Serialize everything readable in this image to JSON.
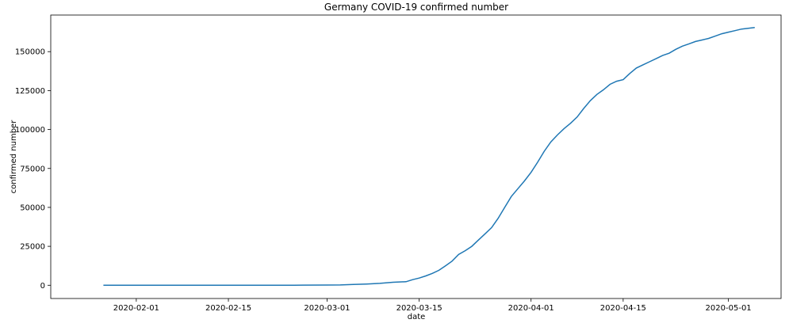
{
  "chart_data": {
    "type": "line",
    "title": "Germany COVID-19 confirmed number",
    "xlabel": "date",
    "ylabel": "confirmed number",
    "x_tick_labels": [
      "2020-02-01",
      "2020-02-15",
      "2020-03-01",
      "2020-03-15",
      "2020-04-01",
      "2020-04-15",
      "2020-05-01"
    ],
    "y_tick_labels": [
      "0",
      "25000",
      "50000",
      "75000",
      "100000",
      "125000",
      "150000"
    ],
    "y_ticks": [
      0,
      25000,
      50000,
      75000,
      100000,
      125000,
      150000
    ],
    "xlim": [
      "2020-01-19",
      "2020-05-09"
    ],
    "ylim": [
      -8500,
      173500
    ],
    "grid": false,
    "series": [
      {
        "color": "#1f77b4",
        "x": [
          "2020-01-27",
          "2020-02-01",
          "2020-02-10",
          "2020-02-20",
          "2020-02-25",
          "2020-03-01",
          "2020-03-03",
          "2020-03-05",
          "2020-03-07",
          "2020-03-09",
          "2020-03-11",
          "2020-03-13",
          "2020-03-14",
          "2020-03-15",
          "2020-03-16",
          "2020-03-17",
          "2020-03-18",
          "2020-03-19",
          "2020-03-20",
          "2020-03-21",
          "2020-03-22",
          "2020-03-23",
          "2020-03-24",
          "2020-03-25",
          "2020-03-26",
          "2020-03-27",
          "2020-03-28",
          "2020-03-29",
          "2020-03-30",
          "2020-03-31",
          "2020-04-01",
          "2020-04-02",
          "2020-04-03",
          "2020-04-04",
          "2020-04-05",
          "2020-04-06",
          "2020-04-07",
          "2020-04-08",
          "2020-04-09",
          "2020-04-10",
          "2020-04-11",
          "2020-04-12",
          "2020-04-13",
          "2020-04-14",
          "2020-04-15",
          "2020-04-16",
          "2020-04-17",
          "2020-04-18",
          "2020-04-19",
          "2020-04-20",
          "2020-04-21",
          "2020-04-22",
          "2020-04-23",
          "2020-04-24",
          "2020-04-25",
          "2020-04-26",
          "2020-04-27",
          "2020-04-28",
          "2020-04-29",
          "2020-04-30",
          "2020-05-01",
          "2020-05-02",
          "2020-05-03",
          "2020-05-04",
          "2020-05-05"
        ],
        "y": [
          1,
          10,
          14,
          16,
          17,
          130,
          200,
          480,
          800,
          1200,
          1900,
          2300,
          3600,
          4600,
          6000,
          7600,
          9600,
          12500,
          15500,
          19800,
          22200,
          25000,
          29000,
          33000,
          37000,
          43000,
          50000,
          57000,
          62000,
          67000,
          72500,
          79000,
          86000,
          92000,
          96500,
          100500,
          104000,
          108000,
          113500,
          118500,
          122500,
          125500,
          129000,
          131000,
          132000,
          136000,
          139500,
          141500,
          143500,
          145500,
          147500,
          149000,
          151500,
          153500,
          155000,
          156500,
          157500,
          158500,
          160000,
          161500,
          162500,
          163500,
          164500,
          165000,
          165500
        ]
      }
    ]
  }
}
